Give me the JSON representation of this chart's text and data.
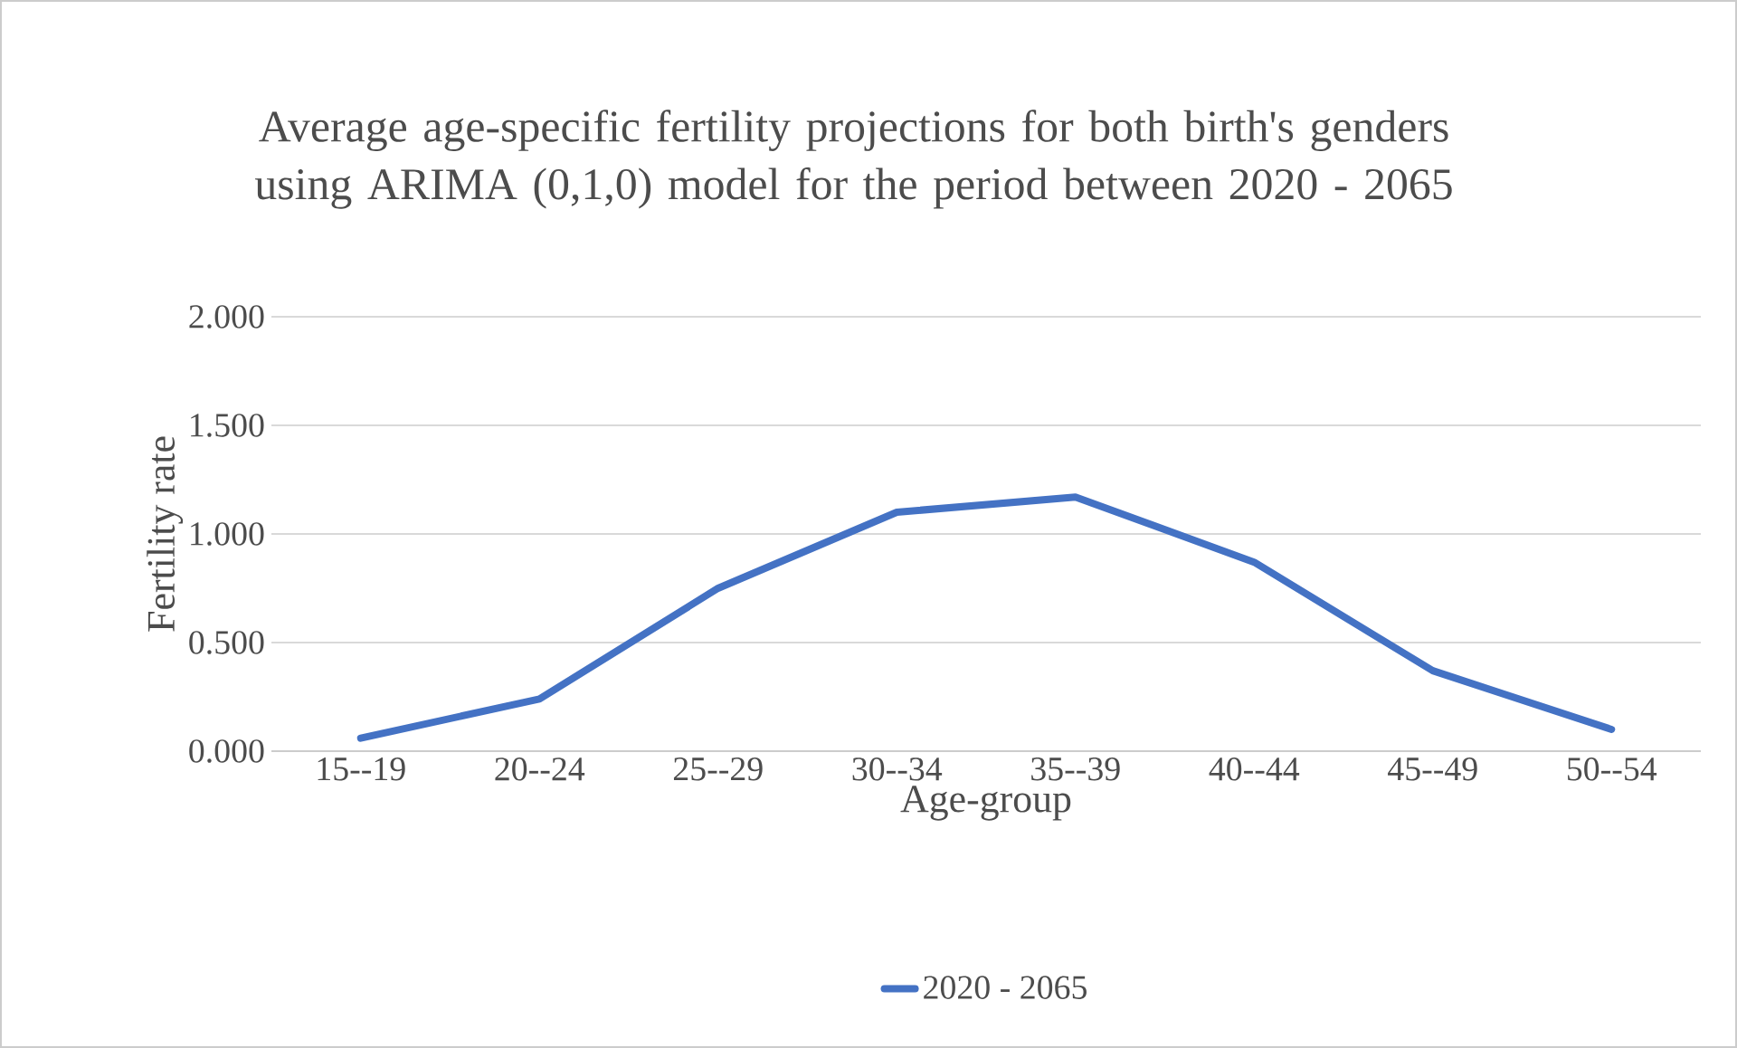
{
  "chart_data": {
    "type": "line",
    "title": "Average age-specific fertility projections for both birth's genders using ARIMA (0,1,0) model for the period between 2020 - 2065",
    "xlabel": "Age-group",
    "ylabel": "Fertility rate",
    "categories": [
      "15--19",
      "20--24",
      "25--29",
      "30--34",
      "35--39",
      "40--44",
      "45--49",
      "50--54"
    ],
    "series": [
      {
        "name": "2020 - 2065",
        "color": "#4472c4",
        "values": [
          0.06,
          0.24,
          0.75,
          1.1,
          1.17,
          0.87,
          0.37,
          0.1
        ]
      }
    ],
    "ylim": [
      0,
      2
    ],
    "yticks": [
      {
        "value": 0,
        "label": "0.000"
      },
      {
        "value": 0.5,
        "label": "0.500"
      },
      {
        "value": 1,
        "label": "1.000"
      },
      {
        "value": 1.5,
        "label": "1.500"
      },
      {
        "value": 2,
        "label": "2.000"
      }
    ],
    "grid": "y",
    "legend": "bottom",
    "marker": "none",
    "line_style": "solid"
  }
}
